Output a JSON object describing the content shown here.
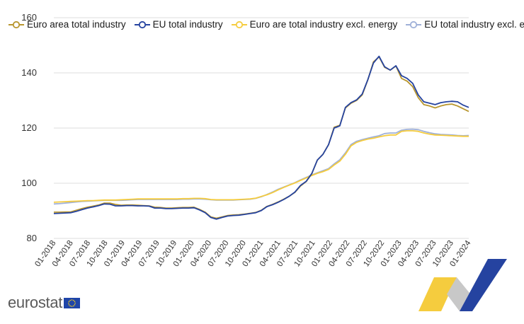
{
  "chart_data": {
    "type": "line",
    "title": "",
    "xlabel": "",
    "ylabel": "",
    "ylim": [
      80,
      160
    ],
    "yticks": [
      80,
      100,
      120,
      140,
      160
    ],
    "grid": true,
    "legend_position": "top-left",
    "x_tick_labels": [
      "01-2018",
      "04-2018",
      "07-2018",
      "10-2018",
      "01-2019",
      "04-2019",
      "07-2019",
      "10-2019",
      "01-2020",
      "04-2020",
      "07-2020",
      "10-2020",
      "01-2021",
      "04-2021",
      "07-2021",
      "10-2021",
      "01-2022",
      "04-2022",
      "07-2022",
      "10-2022",
      "01-2023",
      "04-2023",
      "07-2023",
      "10-2023",
      "01-2024"
    ],
    "series": [
      {
        "name": "Euro area total industry",
        "color": "#b8962e",
        "marker_fill": "#ffffff",
        "values": [
          89.5,
          89.5,
          89.6,
          89.6,
          90.2,
          90.8,
          91.3,
          91.7,
          92.1,
          92.8,
          92.8,
          92.3,
          92.0,
          92.1,
          92.1,
          92.0,
          91.9,
          91.8,
          91.3,
          91.2,
          91.0,
          91.0,
          91.1,
          91.2,
          91.2,
          91.3,
          90.5,
          89.5,
          87.8,
          87.3,
          87.8,
          88.3,
          88.5,
          88.6,
          88.8,
          89.1,
          89.4,
          90.2,
          91.6,
          92.3,
          93.2,
          94.2,
          95.3,
          96.7,
          99.0,
          100.6,
          103.4,
          108.4,
          110.5,
          114.0,
          120.3,
          121.0,
          127.3,
          129.0,
          130.0,
          132.0,
          137.5,
          144.0,
          145.8,
          142.0,
          141.0,
          142.5,
          138.0,
          137.0,
          135.0,
          131.0,
          128.5,
          128.0,
          127.3,
          128.0,
          128.5,
          128.7,
          128.0,
          127.0,
          126.0
        ]
      },
      {
        "name": "EU total industry",
        "color": "#2543a0",
        "marker_fill": "#ffffff",
        "values": [
          89.0,
          89.1,
          89.2,
          89.3,
          89.8,
          90.4,
          91.0,
          91.4,
          91.9,
          92.5,
          92.4,
          91.8,
          91.8,
          91.9,
          91.9,
          91.8,
          91.8,
          91.7,
          91.0,
          91.0,
          90.8,
          90.8,
          90.9,
          91.0,
          91.0,
          91.1,
          90.3,
          89.3,
          87.6,
          87.0,
          87.6,
          88.1,
          88.3,
          88.4,
          88.7,
          89.0,
          89.3,
          90.1,
          91.5,
          92.2,
          93.1,
          94.1,
          95.3,
          96.8,
          99.2,
          100.7,
          103.5,
          108.4,
          110.5,
          114.0,
          120.0,
          120.8,
          127.5,
          129.2,
          130.2,
          132.3,
          137.6,
          143.6,
          146.0,
          142.2,
          141.0,
          142.6,
          139.0,
          138.0,
          136.2,
          132.0,
          129.5,
          129.0,
          128.5,
          129.2,
          129.5,
          129.7,
          129.5,
          128.3,
          127.5
        ]
      },
      {
        "name": "Euro are total industry excl. energy",
        "color": "#f5cc3e",
        "marker_fill": "#ffffff",
        "values": [
          93.1,
          93.2,
          93.3,
          93.4,
          93.5,
          93.6,
          93.7,
          93.7,
          93.8,
          93.9,
          93.9,
          93.9,
          94.0,
          94.1,
          94.2,
          94.3,
          94.3,
          94.3,
          94.3,
          94.3,
          94.3,
          94.3,
          94.3,
          94.4,
          94.4,
          94.5,
          94.5,
          94.4,
          94.1,
          94.0,
          94.0,
          94.0,
          94.0,
          94.1,
          94.2,
          94.3,
          94.6,
          95.2,
          95.8,
          96.6,
          97.6,
          98.5,
          99.3,
          100.1,
          101.0,
          101.9,
          102.8,
          103.6,
          104.2,
          105.0,
          106.6,
          108.0,
          110.5,
          113.5,
          114.8,
          115.5,
          116.0,
          116.3,
          116.8,
          117.2,
          117.5,
          117.5,
          118.8,
          119.0,
          119.0,
          118.8,
          118.2,
          117.8,
          117.5,
          117.4,
          117.3,
          117.2,
          117.1,
          117.0,
          117.0
        ]
      },
      {
        "name": "EU total industry excl. energy",
        "color": "#9fb0d8",
        "marker_fill": "#ffffff",
        "values": [
          92.5,
          92.6,
          92.8,
          93.0,
          93.2,
          93.4,
          93.5,
          93.6,
          93.7,
          93.8,
          93.8,
          93.8,
          93.8,
          93.9,
          94.0,
          94.1,
          94.1,
          94.1,
          94.1,
          94.1,
          94.1,
          94.1,
          94.1,
          94.2,
          94.2,
          94.3,
          94.3,
          94.2,
          94.0,
          93.9,
          93.9,
          93.9,
          93.9,
          94.0,
          94.1,
          94.2,
          94.5,
          95.1,
          95.9,
          96.8,
          97.8,
          98.6,
          99.4,
          100.2,
          101.2,
          102.1,
          103.0,
          103.8,
          104.5,
          105.3,
          107.0,
          108.5,
          111.0,
          114.0,
          115.2,
          115.8,
          116.3,
          116.8,
          117.2,
          118.0,
          118.2,
          118.2,
          119.2,
          119.5,
          119.6,
          119.4,
          118.8,
          118.3,
          117.9,
          117.7,
          117.6,
          117.5,
          117.3,
          117.2,
          117.3
        ]
      }
    ]
  },
  "branding": {
    "logo_text": "eurostat",
    "eu_flag_icon": "eu-flag-icon",
    "decoration": "ribbon-decoration"
  },
  "colors": {
    "grid": "#dcdcdc",
    "axis_text": "#333333",
    "ribbon_yellow": "#f5cc3e",
    "ribbon_blue": "#2543a0",
    "ribbon_grey": "#c8c8c8",
    "flag_blue": "#1f45a8",
    "flag_star": "#ffd617"
  }
}
